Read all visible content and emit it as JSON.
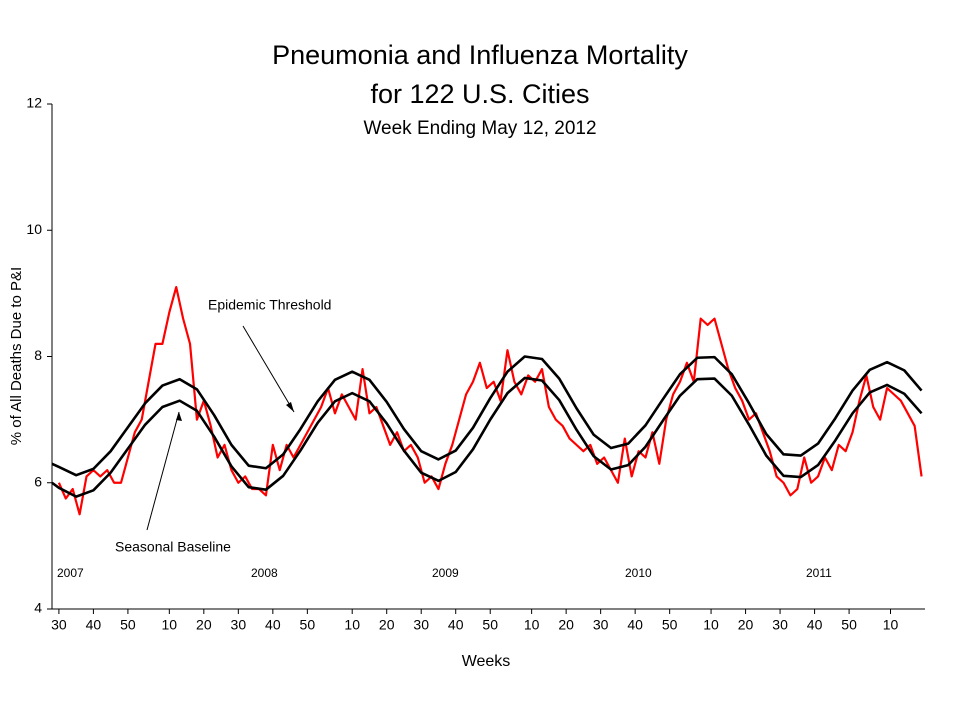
{
  "chart_data": {
    "type": "line",
    "title": "Pneumonia and Influenza Mortality",
    "title_line2": "for 122 U.S. Cities",
    "subtitle": "Week Ending  May 12, 2012",
    "x_label": "Weeks",
    "y_label": "% of All Deaths Due to P&I",
    "annotations": [
      "Epidemic Threshold",
      "Seasonal Baseline"
    ],
    "year_labels": [
      "2007",
      "2008",
      "2009",
      "2010",
      "2011"
    ],
    "xlim": [
      -2,
      251
    ],
    "ylim": [
      4,
      12
    ],
    "yticks": [
      4,
      6,
      8,
      10,
      12
    ],
    "xticks": [
      {
        "value": 0,
        "label": "30"
      },
      {
        "value": 10,
        "label": "40"
      },
      {
        "value": 20,
        "label": "50"
      },
      {
        "value": 32,
        "label": "10"
      },
      {
        "value": 42,
        "label": "20"
      },
      {
        "value": 52,
        "label": "30"
      },
      {
        "value": 62,
        "label": "40"
      },
      {
        "value": 72,
        "label": "50"
      },
      {
        "value": 85,
        "label": "10"
      },
      {
        "value": 95,
        "label": "20"
      },
      {
        "value": 105,
        "label": "30"
      },
      {
        "value": 115,
        "label": "40"
      },
      {
        "value": 125,
        "label": "50"
      },
      {
        "value": 137,
        "label": "10"
      },
      {
        "value": 147,
        "label": "20"
      },
      {
        "value": 157,
        "label": "30"
      },
      {
        "value": 167,
        "label": "40"
      },
      {
        "value": 177,
        "label": "50"
      },
      {
        "value": 189,
        "label": "10"
      },
      {
        "value": 199,
        "label": "20"
      },
      {
        "value": 209,
        "label": "30"
      },
      {
        "value": 219,
        "label": "40"
      },
      {
        "value": 229,
        "label": "50"
      },
      {
        "value": 241,
        "label": "10"
      }
    ],
    "series": [
      {
        "color": "#ff0000",
        "x": [
          0,
          2,
          4,
          6,
          8,
          10,
          12,
          14,
          16,
          18,
          20,
          22,
          24,
          26,
          28,
          30,
          32,
          34,
          36,
          38,
          40,
          42,
          44,
          46,
          48,
          50,
          52,
          54,
          56,
          58,
          60,
          62,
          64,
          66,
          68,
          70,
          72,
          74,
          76,
          78,
          80,
          82,
          84,
          86,
          88,
          90,
          92,
          94,
          96,
          98,
          100,
          102,
          104,
          106,
          108,
          110,
          112,
          114,
          116,
          118,
          120,
          122,
          124,
          126,
          128,
          130,
          132,
          134,
          136,
          138,
          140,
          142,
          144,
          146,
          148,
          150,
          152,
          154,
          156,
          158,
          160,
          162,
          164,
          166,
          168,
          170,
          172,
          174,
          176,
          178,
          180,
          182,
          184,
          186,
          188,
          190,
          192,
          194,
          196,
          198,
          200,
          202,
          204,
          206,
          208,
          210,
          212,
          214,
          216,
          218,
          220,
          222,
          224,
          226,
          228,
          230,
          232,
          234,
          236,
          238,
          240,
          242,
          244,
          246,
          248,
          250
        ],
        "values": [
          6.0,
          5.75,
          5.9,
          5.5,
          6.1,
          6.2,
          6.1,
          6.2,
          6.0,
          6.0,
          6.4,
          6.8,
          7.0,
          7.6,
          8.2,
          8.2,
          8.7,
          9.1,
          8.6,
          8.2,
          7.0,
          7.3,
          6.9,
          6.4,
          6.6,
          6.2,
          6.0,
          6.1,
          5.9,
          5.9,
          5.8,
          6.6,
          6.2,
          6.6,
          6.4,
          6.6,
          6.8,
          7.0,
          7.2,
          7.5,
          7.1,
          7.4,
          7.2,
          7.0,
          7.8,
          7.1,
          7.2,
          6.9,
          6.6,
          6.8,
          6.5,
          6.6,
          6.4,
          6.0,
          6.1,
          5.9,
          6.3,
          6.6,
          7.0,
          7.4,
          7.6,
          7.9,
          7.5,
          7.6,
          7.3,
          8.1,
          7.6,
          7.4,
          7.7,
          7.6,
          7.8,
          7.2,
          7.0,
          6.9,
          6.7,
          6.6,
          6.5,
          6.6,
          6.3,
          6.4,
          6.2,
          6.0,
          6.7,
          6.1,
          6.5,
          6.4,
          6.8,
          6.3,
          7.0,
          7.4,
          7.6,
          7.9,
          7.6,
          8.6,
          8.5,
          8.6,
          8.2,
          7.8,
          7.5,
          7.3,
          7.0,
          7.1,
          6.8,
          6.5,
          6.1,
          6.0,
          5.8,
          5.9,
          6.4,
          6.0,
          6.1,
          6.4,
          6.2,
          6.6,
          6.5,
          6.8,
          7.3,
          7.7,
          7.2,
          7.0,
          7.5,
          7.4,
          7.3,
          7.1,
          6.9,
          6.1
        ]
      },
      {
        "color": "#000000",
        "x": [
          -2,
          0,
          5,
          10,
          15,
          20,
          25,
          30,
          35,
          40,
          45,
          50,
          55,
          60,
          65,
          70,
          75,
          80,
          85,
          90,
          95,
          100,
          105,
          110,
          115,
          120,
          125,
          130,
          135,
          140,
          145,
          150,
          155,
          160,
          165,
          170,
          175,
          180,
          185,
          190,
          195,
          200,
          205,
          210,
          215,
          220,
          225,
          230,
          235,
          240,
          245,
          250
        ],
        "values": [
          6.0,
          5.92,
          5.78,
          5.88,
          6.16,
          6.54,
          6.92,
          7.2,
          7.3,
          7.14,
          6.73,
          6.26,
          5.93,
          5.89,
          6.11,
          6.51,
          6.95,
          7.29,
          7.42,
          7.29,
          6.94,
          6.51,
          6.16,
          6.03,
          6.17,
          6.53,
          7.0,
          7.42,
          7.66,
          7.62,
          7.31,
          6.84,
          6.42,
          6.21,
          6.28,
          6.57,
          6.98,
          7.38,
          7.64,
          7.65,
          7.38,
          6.92,
          6.43,
          6.11,
          6.09,
          6.28,
          6.67,
          7.1,
          7.43,
          7.55,
          7.41,
          7.1
        ]
      },
      {
        "color": "#000000",
        "x": [
          -2,
          0,
          5,
          10,
          15,
          20,
          25,
          30,
          35,
          40,
          45,
          50,
          55,
          60,
          65,
          70,
          75,
          80,
          85,
          90,
          95,
          100,
          105,
          110,
          115,
          120,
          125,
          130,
          135,
          140,
          145,
          150,
          155,
          160,
          165,
          170,
          175,
          180,
          185,
          190,
          195,
          200,
          205,
          210,
          215,
          220,
          225,
          230,
          235,
          240,
          245,
          250
        ],
        "values": [
          6.3,
          6.25,
          6.12,
          6.22,
          6.5,
          6.88,
          7.26,
          7.54,
          7.64,
          7.48,
          7.07,
          6.6,
          6.27,
          6.23,
          6.45,
          6.85,
          7.29,
          7.63,
          7.76,
          7.63,
          7.28,
          6.85,
          6.5,
          6.37,
          6.51,
          6.87,
          7.34,
          7.76,
          8.0,
          7.96,
          7.65,
          7.18,
          6.76,
          6.55,
          6.62,
          6.91,
          7.32,
          7.72,
          7.98,
          7.99,
          7.72,
          7.26,
          6.77,
          6.45,
          6.43,
          6.62,
          7.02,
          7.46,
          7.79,
          7.91,
          7.78,
          7.46
        ]
      }
    ]
  }
}
